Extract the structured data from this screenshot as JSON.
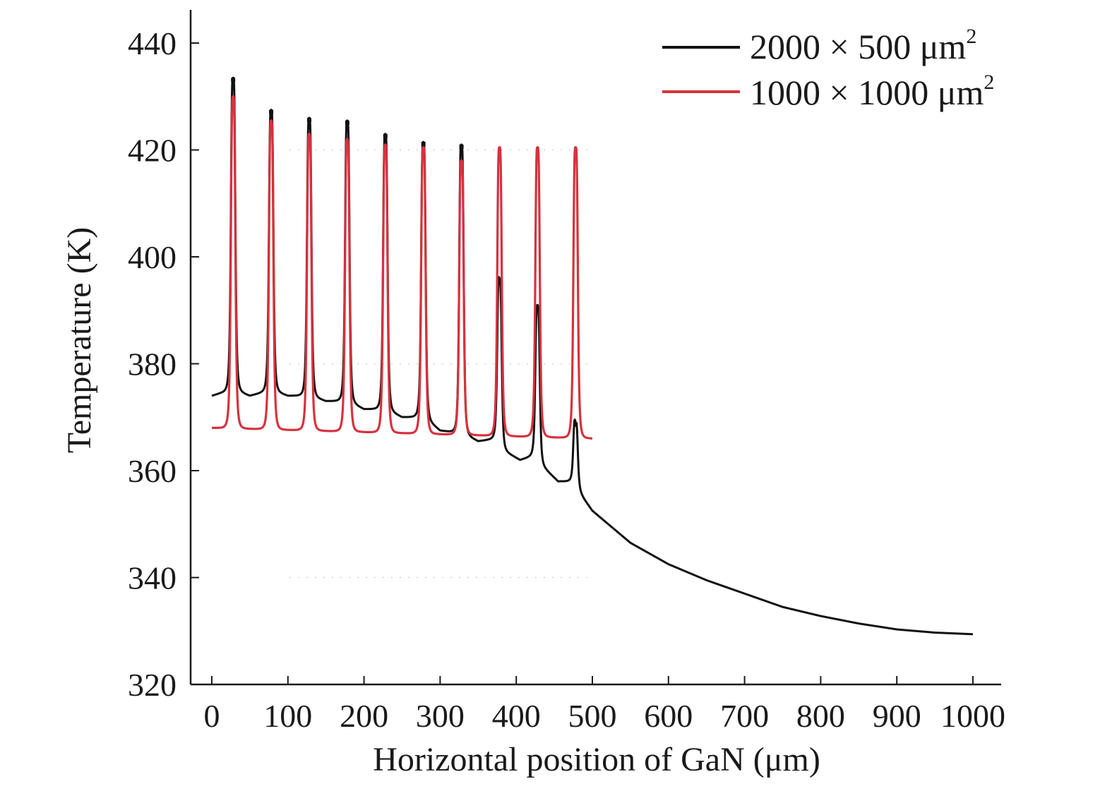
{
  "chart_data": {
    "type": "line",
    "title": "",
    "xlabel": "Horizontal position of GaN (μm)",
    "ylabel": "Temperature (K)",
    "xlim": [
      0,
      1000
    ],
    "ylim": [
      320,
      440
    ],
    "x_ticks": [
      0,
      100,
      200,
      300,
      400,
      500,
      600,
      700,
      800,
      900,
      1000
    ],
    "y_ticks": [
      320,
      340,
      360,
      380,
      400,
      420,
      440
    ],
    "x_tick_labels": [
      "0",
      "100",
      "200",
      "300",
      "400",
      "500",
      "600",
      "700",
      "800",
      "900",
      "1000"
    ],
    "y_tick_labels": [
      "320",
      "340",
      "360",
      "380",
      "400",
      "420",
      "440"
    ],
    "grid": false,
    "legend_position": "top-right",
    "series": [
      {
        "name": "2000 × 500 μm",
        "superscript": "2",
        "color": "#111111",
        "baseline": [
          [
            0,
            374
          ],
          [
            12,
            374.5
          ],
          [
            30,
            375
          ],
          [
            50,
            374
          ],
          [
            78,
            375
          ],
          [
            100,
            374
          ],
          [
            128,
            374
          ],
          [
            150,
            373
          ],
          [
            178,
            373
          ],
          [
            200,
            371.5
          ],
          [
            228,
            371.5
          ],
          [
            250,
            370
          ],
          [
            278,
            370
          ],
          [
            300,
            367.5
          ],
          [
            328,
            367
          ],
          [
            350,
            365.5
          ],
          [
            375,
            366
          ],
          [
            380,
            364
          ],
          [
            405,
            362
          ],
          [
            428,
            363
          ],
          [
            433,
            361
          ],
          [
            455,
            358
          ],
          [
            475,
            358
          ],
          [
            478,
            356
          ],
          [
            483,
            356
          ],
          [
            490,
            354.5
          ],
          [
            500,
            352.5
          ],
          [
            550,
            346.5
          ],
          [
            600,
            342.5
          ],
          [
            650,
            339.5
          ],
          [
            700,
            337
          ],
          [
            750,
            334.5
          ],
          [
            800,
            332.8
          ],
          [
            850,
            331.4
          ],
          [
            900,
            330.3
          ],
          [
            950,
            329.7
          ],
          [
            1000,
            329.4
          ]
        ],
        "peaks": [
          {
            "x": 28,
            "y": 433.5
          },
          {
            "x": 78,
            "y": 427.5
          },
          {
            "x": 128,
            "y": 426
          },
          {
            "x": 178,
            "y": 425.5
          },
          {
            "x": 228,
            "y": 423
          },
          {
            "x": 278,
            "y": 421.5
          },
          {
            "x": 328,
            "y": 421
          },
          {
            "x": 378,
            "y": 396
          },
          {
            "x": 428,
            "y": 391
          },
          {
            "x": 478,
            "y": 369
          }
        ]
      },
      {
        "name": "1000 × 1000 μm",
        "superscript": "2",
        "color": "#d6323e",
        "baseline": [
          [
            0,
            368
          ],
          [
            500,
            366
          ]
        ],
        "peaks": [
          {
            "x": 28,
            "y": 430
          },
          {
            "x": 78,
            "y": 425.5
          },
          {
            "x": 128,
            "y": 423
          },
          {
            "x": 178,
            "y": 422
          },
          {
            "x": 228,
            "y": 421
          },
          {
            "x": 278,
            "y": 420.5
          },
          {
            "x": 328,
            "y": 418
          },
          {
            "x": 378,
            "y": 420.5
          },
          {
            "x": 428,
            "y": 420.5
          },
          {
            "x": 478,
            "y": 420.5
          }
        ]
      }
    ]
  }
}
